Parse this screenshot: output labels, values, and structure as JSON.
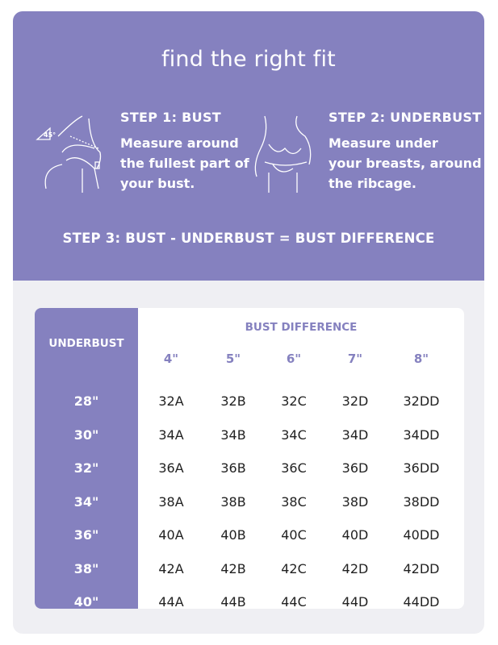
{
  "title": "find the right fit",
  "steps": [
    {
      "heading": "STEP 1: BUST",
      "lines": [
        "Measure around",
        "the fullest part of",
        "your bust."
      ],
      "angle_label": "45°"
    },
    {
      "heading": "STEP 2: UNDERBUST",
      "lines": [
        "Measure under",
        "your breasts, around",
        "the ribcage."
      ]
    }
  ],
  "step3": "STEP 3: BUST - UNDERBUST = BUST DIFFERENCE",
  "colors": {
    "accent": "#8581bf",
    "background": "#efeff3"
  },
  "table": {
    "row_header": "UNDERBUST",
    "col_group_header": "BUST DIFFERENCE",
    "columns": [
      "4\"",
      "5\"",
      "6\"",
      "7\"",
      "8\""
    ],
    "rows": [
      {
        "label": "28\"",
        "cells": [
          "32A",
          "32B",
          "32C",
          "32D",
          "32DD"
        ]
      },
      {
        "label": "30\"",
        "cells": [
          "34A",
          "34B",
          "34C",
          "34D",
          "34DD"
        ]
      },
      {
        "label": "32\"",
        "cells": [
          "36A",
          "36B",
          "36C",
          "36D",
          "36DD"
        ]
      },
      {
        "label": "34\"",
        "cells": [
          "38A",
          "38B",
          "38C",
          "38D",
          "38DD"
        ]
      },
      {
        "label": "36\"",
        "cells": [
          "40A",
          "40B",
          "40C",
          "40D",
          "40DD"
        ]
      },
      {
        "label": "38\"",
        "cells": [
          "42A",
          "42B",
          "42C",
          "42D",
          "42DD"
        ]
      },
      {
        "label": "40\"",
        "cells": [
          "44A",
          "44B",
          "44C",
          "44D",
          "44DD"
        ]
      }
    ]
  }
}
